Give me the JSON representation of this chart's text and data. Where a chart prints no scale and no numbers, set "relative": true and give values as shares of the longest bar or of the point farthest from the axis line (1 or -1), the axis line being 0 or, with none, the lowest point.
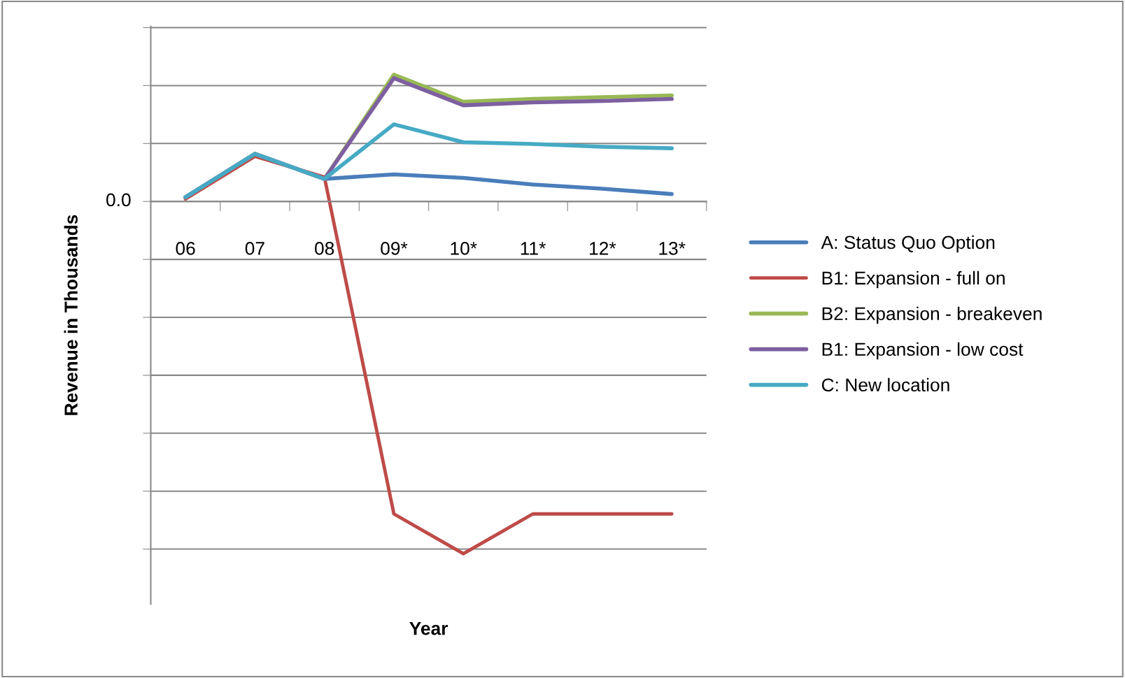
{
  "chart_data": {
    "type": "line",
    "relative": true,
    "xlabel": "Year",
    "ylabel": "Revenue in Thousands",
    "categories": [
      "06",
      "07",
      "08",
      "09*",
      "10*",
      "11*",
      "12*",
      "13*"
    ],
    "series": [
      {
        "name": "A: Status Quo Option",
        "color": "#4a7ebb",
        "values": [
          0.012,
          0.135,
          0.064,
          0.077,
          0.067,
          0.048,
          0.036,
          0.021
        ]
      },
      {
        "name": "B1: Expansion - full on",
        "color": "#be4b48",
        "values": [
          0.007,
          0.128,
          0.069,
          -0.887,
          -1,
          -0.887,
          -0.887,
          -0.887
        ]
      },
      {
        "name": "B2: Expansion - breakeven",
        "color": "#98b954",
        "values": [
          0.012,
          0.135,
          0.064,
          0.36,
          0.283,
          0.291,
          0.296,
          0.301
        ]
      },
      {
        "name": "B1: Expansion - low cost",
        "color": "#7d5fa0",
        "values": [
          0.012,
          0.135,
          0.064,
          0.35,
          0.273,
          0.281,
          0.285,
          0.291
        ]
      },
      {
        "name": "C: New location",
        "color": "#46aac5",
        "values": [
          0.012,
          0.135,
          0.064,
          0.219,
          0.168,
          0.163,
          0.155,
          0.151
        ]
      }
    ],
    "annotations": [
      "0.0"
    ],
    "grid": "y",
    "legend": "right",
    "marker": "none",
    "line_style": "solid"
  }
}
